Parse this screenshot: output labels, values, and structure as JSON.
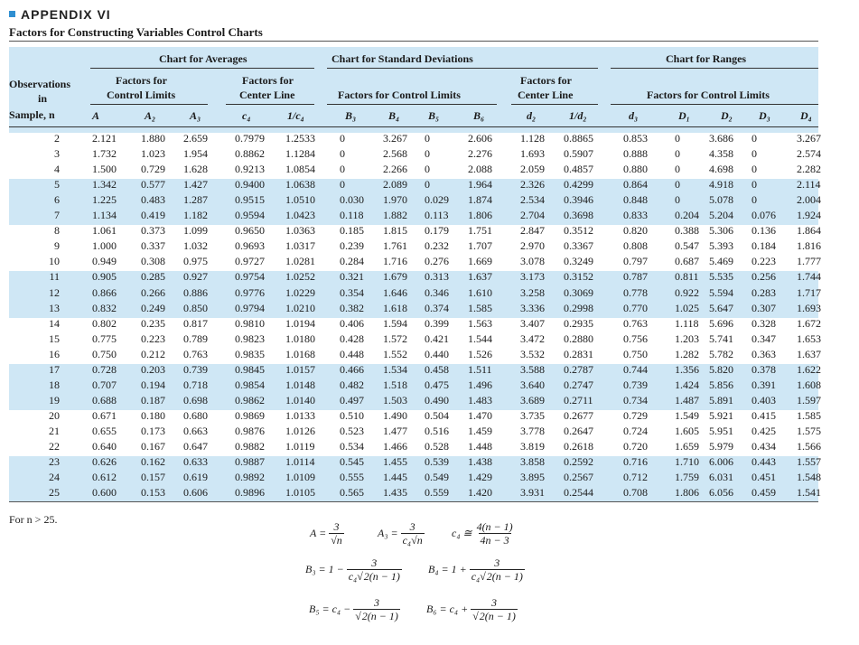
{
  "appendix": "APPENDIX VI",
  "title": "Factors for Constructing Variables Control Charts",
  "header": {
    "chart_avg": "Chart for Averages",
    "chart_sd": "Chart for Standard Deviations",
    "chart_rng": "Chart for Ranges",
    "obs1": "Observations",
    "obs2": "in",
    "obs3": "Sample, n",
    "avg_cl1": "Factors for",
    "avg_cl2": "Control Limits",
    "avg_cen1": "Factors for",
    "avg_cen2": "Center Line",
    "sd_cl": "Factors for Control Limits",
    "rng_cen1": "Factors for",
    "rng_cen2": "Center Line",
    "rng_cl": "Factors for Control Limits",
    "cols": [
      "A",
      "A₂",
      "A₃",
      "c₄",
      "1/c₄",
      "B₃",
      "B₄",
      "B₅",
      "B₆",
      "d₂",
      "1/d₂",
      "d₃",
      "D₁",
      "D₂",
      "D₃",
      "D₄"
    ]
  },
  "rows": [
    [
      "2",
      "2.121",
      "1.880",
      "2.659",
      "0.7979",
      "1.2533",
      "0",
      "3.267",
      "0",
      "2.606",
      "1.128",
      "0.8865",
      "0.853",
      "0",
      "3.686",
      "0",
      "3.267"
    ],
    [
      "3",
      "1.732",
      "1.023",
      "1.954",
      "0.8862",
      "1.1284",
      "0",
      "2.568",
      "0",
      "2.276",
      "1.693",
      "0.5907",
      "0.888",
      "0",
      "4.358",
      "0",
      "2.574"
    ],
    [
      "4",
      "1.500",
      "0.729",
      "1.628",
      "0.9213",
      "1.0854",
      "0",
      "2.266",
      "0",
      "2.088",
      "2.059",
      "0.4857",
      "0.880",
      "0",
      "4.698",
      "0",
      "2.282"
    ],
    [
      "5",
      "1.342",
      "0.577",
      "1.427",
      "0.9400",
      "1.0638",
      "0",
      "2.089",
      "0",
      "1.964",
      "2.326",
      "0.4299",
      "0.864",
      "0",
      "4.918",
      "0",
      "2.114"
    ],
    [
      "6",
      "1.225",
      "0.483",
      "1.287",
      "0.9515",
      "1.0510",
      "0.030",
      "1.970",
      "0.029",
      "1.874",
      "2.534",
      "0.3946",
      "0.848",
      "0",
      "5.078",
      "0",
      "2.004"
    ],
    [
      "7",
      "1.134",
      "0.419",
      "1.182",
      "0.9594",
      "1.0423",
      "0.118",
      "1.882",
      "0.113",
      "1.806",
      "2.704",
      "0.3698",
      "0.833",
      "0.204",
      "5.204",
      "0.076",
      "1.924"
    ],
    [
      "8",
      "1.061",
      "0.373",
      "1.099",
      "0.9650",
      "1.0363",
      "0.185",
      "1.815",
      "0.179",
      "1.751",
      "2.847",
      "0.3512",
      "0.820",
      "0.388",
      "5.306",
      "0.136",
      "1.864"
    ],
    [
      "9",
      "1.000",
      "0.337",
      "1.032",
      "0.9693",
      "1.0317",
      "0.239",
      "1.761",
      "0.232",
      "1.707",
      "2.970",
      "0.3367",
      "0.808",
      "0.547",
      "5.393",
      "0.184",
      "1.816"
    ],
    [
      "10",
      "0.949",
      "0.308",
      "0.975",
      "0.9727",
      "1.0281",
      "0.284",
      "1.716",
      "0.276",
      "1.669",
      "3.078",
      "0.3249",
      "0.797",
      "0.687",
      "5.469",
      "0.223",
      "1.777"
    ],
    [
      "11",
      "0.905",
      "0.285",
      "0.927",
      "0.9754",
      "1.0252",
      "0.321",
      "1.679",
      "0.313",
      "1.637",
      "3.173",
      "0.3152",
      "0.787",
      "0.811",
      "5.535",
      "0.256",
      "1.744"
    ],
    [
      "12",
      "0.866",
      "0.266",
      "0.886",
      "0.9776",
      "1.0229",
      "0.354",
      "1.646",
      "0.346",
      "1.610",
      "3.258",
      "0.3069",
      "0.778",
      "0.922",
      "5.594",
      "0.283",
      "1.717"
    ],
    [
      "13",
      "0.832",
      "0.249",
      "0.850",
      "0.9794",
      "1.0210",
      "0.382",
      "1.618",
      "0.374",
      "1.585",
      "3.336",
      "0.2998",
      "0.770",
      "1.025",
      "5.647",
      "0.307",
      "1.693"
    ],
    [
      "14",
      "0.802",
      "0.235",
      "0.817",
      "0.9810",
      "1.0194",
      "0.406",
      "1.594",
      "0.399",
      "1.563",
      "3.407",
      "0.2935",
      "0.763",
      "1.118",
      "5.696",
      "0.328",
      "1.672"
    ],
    [
      "15",
      "0.775",
      "0.223",
      "0.789",
      "0.9823",
      "1.0180",
      "0.428",
      "1.572",
      "0.421",
      "1.544",
      "3.472",
      "0.2880",
      "0.756",
      "1.203",
      "5.741",
      "0.347",
      "1.653"
    ],
    [
      "16",
      "0.750",
      "0.212",
      "0.763",
      "0.9835",
      "1.0168",
      "0.448",
      "1.552",
      "0.440",
      "1.526",
      "3.532",
      "0.2831",
      "0.750",
      "1.282",
      "5.782",
      "0.363",
      "1.637"
    ],
    [
      "17",
      "0.728",
      "0.203",
      "0.739",
      "0.9845",
      "1.0157",
      "0.466",
      "1.534",
      "0.458",
      "1.511",
      "3.588",
      "0.2787",
      "0.744",
      "1.356",
      "5.820",
      "0.378",
      "1.622"
    ],
    [
      "18",
      "0.707",
      "0.194",
      "0.718",
      "0.9854",
      "1.0148",
      "0.482",
      "1.518",
      "0.475",
      "1.496",
      "3.640",
      "0.2747",
      "0.739",
      "1.424",
      "5.856",
      "0.391",
      "1.608"
    ],
    [
      "19",
      "0.688",
      "0.187",
      "0.698",
      "0.9862",
      "1.0140",
      "0.497",
      "1.503",
      "0.490",
      "1.483",
      "3.689",
      "0.2711",
      "0.734",
      "1.487",
      "5.891",
      "0.403",
      "1.597"
    ],
    [
      "20",
      "0.671",
      "0.180",
      "0.680",
      "0.9869",
      "1.0133",
      "0.510",
      "1.490",
      "0.504",
      "1.470",
      "3.735",
      "0.2677",
      "0.729",
      "1.549",
      "5.921",
      "0.415",
      "1.585"
    ],
    [
      "21",
      "0.655",
      "0.173",
      "0.663",
      "0.9876",
      "1.0126",
      "0.523",
      "1.477",
      "0.516",
      "1.459",
      "3.778",
      "0.2647",
      "0.724",
      "1.605",
      "5.951",
      "0.425",
      "1.575"
    ],
    [
      "22",
      "0.640",
      "0.167",
      "0.647",
      "0.9882",
      "1.0119",
      "0.534",
      "1.466",
      "0.528",
      "1.448",
      "3.819",
      "0.2618",
      "0.720",
      "1.659",
      "5.979",
      "0.434",
      "1.566"
    ],
    [
      "23",
      "0.626",
      "0.162",
      "0.633",
      "0.9887",
      "1.0114",
      "0.545",
      "1.455",
      "0.539",
      "1.438",
      "3.858",
      "0.2592",
      "0.716",
      "1.710",
      "6.006",
      "0.443",
      "1.557"
    ],
    [
      "24",
      "0.612",
      "0.157",
      "0.619",
      "0.9892",
      "1.0109",
      "0.555",
      "1.445",
      "0.549",
      "1.429",
      "3.895",
      "0.2567",
      "0.712",
      "1.759",
      "6.031",
      "0.451",
      "1.548"
    ],
    [
      "25",
      "0.600",
      "0.153",
      "0.606",
      "0.9896",
      "1.0105",
      "0.565",
      "1.435",
      "0.559",
      "1.420",
      "3.931",
      "0.2544",
      "0.708",
      "1.806",
      "6.056",
      "0.459",
      "1.541"
    ]
  ],
  "note": "For n > 25.",
  "formulas": {
    "a_lhs": "A =",
    "a_num": "3",
    "a_den": "√n",
    "a3_lhs": "A₃ =",
    "a3_num": "3",
    "a3_den": "c₄√n",
    "c4_lhs": "c₄ ≅",
    "c4_num": "4(n − 1)",
    "c4_den": "4n − 3",
    "b3_lhs": "B₃ = 1 −",
    "b3_num": "3",
    "b3_den_pre": "c₄√",
    "b3_den_rad": "2(n − 1)",
    "b4_lhs": "B₄ = 1 +",
    "b4_num": "3",
    "b4_den_pre": "c₄√",
    "b4_den_rad": "2(n − 1)",
    "b5_lhs": "B₅ = c₄ −",
    "b5_num": "3",
    "b5_den_pre": "√",
    "b5_den_rad": "2(n − 1)",
    "b6_lhs": "B₆ = c₄ +",
    "b6_num": "3",
    "b6_den_pre": "√",
    "b6_den_rad": "2(n − 1)"
  }
}
